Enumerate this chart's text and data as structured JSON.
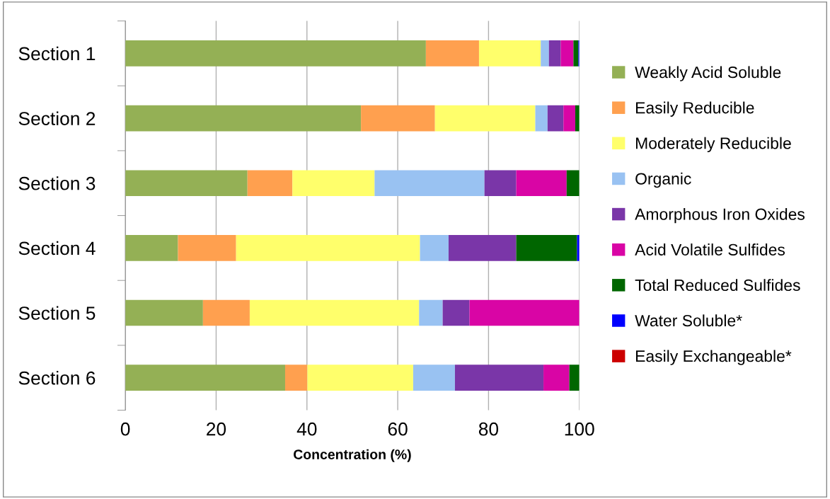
{
  "chart_data": {
    "type": "bar",
    "orientation": "horizontal",
    "stacked": true,
    "xlabel": "Concentration (%)",
    "categories": [
      "Section 1",
      "Section 2",
      "Section 3",
      "Section 4",
      "Section 5",
      "Section 6"
    ],
    "xlim": [
      0,
      100
    ],
    "xticks": [
      0,
      20,
      40,
      60,
      80,
      100
    ],
    "grid": "x",
    "legend": "right",
    "series": [
      {
        "name": "Weakly Acid Soluble",
        "color": "#94b055",
        "values": [
          66.2,
          51.9,
          26.9,
          11.6,
          17.1,
          35.2
        ]
      },
      {
        "name": "Easily Reducible",
        "color": "#ffa04f",
        "values": [
          11.7,
          16.3,
          9.9,
          12.8,
          10.3,
          4.9
        ]
      },
      {
        "name": "Moderately Reducible",
        "color": "#ffff6b",
        "values": [
          13.6,
          22.1,
          18.1,
          40.5,
          37.3,
          23.3
        ]
      },
      {
        "name": "Organic",
        "color": "#99c2f2",
        "values": [
          1.8,
          2.7,
          24.2,
          6.3,
          5.2,
          9.2
        ]
      },
      {
        "name": "Amorphous Iron Oxides",
        "color": "#7a36a8",
        "values": [
          2.6,
          3.5,
          7.0,
          14.9,
          5.9,
          19.5
        ]
      },
      {
        "name": "Acid Volatile Sulfides",
        "color": "#d905a5",
        "values": [
          2.8,
          2.6,
          11.1,
          0,
          24.2,
          5.7
        ]
      },
      {
        "name": "Total Reduced Sulfides",
        "color": "#006600",
        "values": [
          1.1,
          0.9,
          2.8,
          13.4,
          0,
          2.2
        ]
      },
      {
        "name": "Water Soluble*",
        "color": "#0000ff",
        "values": [
          0.2,
          0,
          0,
          0.5,
          0,
          0
        ]
      },
      {
        "name": "Easily Exchangeable*",
        "color": "#cc0000",
        "values": [
          0,
          0,
          0,
          0,
          0,
          0
        ]
      }
    ]
  }
}
